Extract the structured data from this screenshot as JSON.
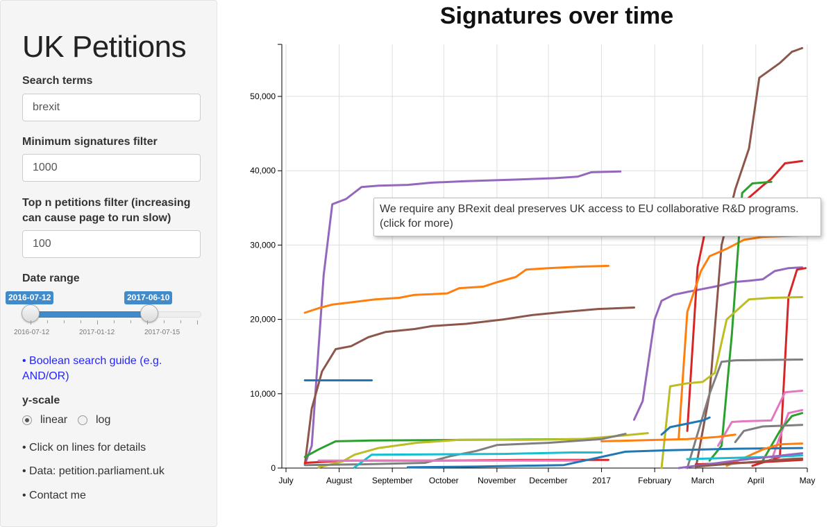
{
  "sidebar": {
    "title": "UK Petitions",
    "search_label": "Search terms",
    "search_value": "brexit",
    "min_sig_label": "Minimum signatures filter",
    "min_sig_value": "1000",
    "topn_label": "Top n petitions filter (increasing can cause page to run slow)",
    "topn_value": "100",
    "date_label": "Date range",
    "date_from": "2016-07-12",
    "date_to": "2017-06-10",
    "date_grid": [
      "2016-07-12",
      "2017-01-12",
      "2017-07-15"
    ],
    "guide_link": "• Boolean search guide (e.g. AND/OR)",
    "yscale_label": "y-scale",
    "yscale_options": [
      "linear",
      "log"
    ],
    "yscale_selected": "linear",
    "info1": "• Click on lines for details",
    "info2": "• Data: petition.parliament.uk",
    "info3": "• Contact me"
  },
  "tooltip": "We require any BRexit deal preserves UK access to EU collaborative R&D programs. (click for more)",
  "chart_data": {
    "type": "line",
    "title": "Signatures over time",
    "xlabel": "",
    "ylabel": "",
    "xlim": [
      "2016-07-01",
      "2017-05-01"
    ],
    "ylim": [
      0,
      57000
    ],
    "grid": true,
    "x_ticks": [
      {
        "date": "2016-07-01",
        "label": "July"
      },
      {
        "date": "2016-08-01",
        "label": "August"
      },
      {
        "date": "2016-09-01",
        "label": "September"
      },
      {
        "date": "2016-10-01",
        "label": "October"
      },
      {
        "date": "2016-11-01",
        "label": "November"
      },
      {
        "date": "2016-12-01",
        "label": "December"
      },
      {
        "date": "2017-01-01",
        "label": "2017"
      },
      {
        "date": "2017-02-01",
        "label": "February"
      },
      {
        "date": "2017-03-01",
        "label": "March"
      },
      {
        "date": "2017-04-01",
        "label": "April"
      },
      {
        "date": "2017-05-01",
        "label": "May"
      }
    ],
    "y_ticks": [
      0,
      10000,
      20000,
      30000,
      40000,
      50000
    ],
    "series": [
      {
        "color": "#9467bd",
        "points": [
          [
            "2016-07-12",
            500
          ],
          [
            "2016-07-16",
            3000
          ],
          [
            "2016-07-23",
            26000
          ],
          [
            "2016-07-28",
            35500
          ],
          [
            "2016-08-05",
            36200
          ],
          [
            "2016-08-14",
            37800
          ],
          [
            "2016-08-24",
            38000
          ],
          [
            "2016-09-10",
            38100
          ],
          [
            "2016-09-24",
            38400
          ],
          [
            "2016-10-14",
            38600
          ],
          [
            "2016-11-10",
            38800
          ],
          [
            "2016-12-05",
            39000
          ],
          [
            "2016-12-18",
            39200
          ],
          [
            "2016-12-26",
            39800
          ],
          [
            "2017-01-12",
            39900
          ]
        ]
      },
      {
        "color": "#ff7f0e",
        "points": [
          [
            "2016-07-12",
            20900
          ],
          [
            "2016-07-20",
            21500
          ],
          [
            "2016-07-28",
            22000
          ],
          [
            "2016-08-08",
            22300
          ],
          [
            "2016-08-22",
            22700
          ],
          [
            "2016-09-05",
            22900
          ],
          [
            "2016-09-14",
            23300
          ],
          [
            "2016-09-24",
            23400
          ],
          [
            "2016-10-03",
            23500
          ],
          [
            "2016-10-10",
            24200
          ],
          [
            "2016-10-24",
            24400
          ],
          [
            "2016-11-01",
            25000
          ],
          [
            "2016-11-12",
            25700
          ],
          [
            "2016-11-18",
            26700
          ],
          [
            "2016-12-01",
            26900
          ],
          [
            "2016-12-20",
            27100
          ],
          [
            "2017-01-05",
            27200
          ]
        ]
      },
      {
        "color": "#8c564b",
        "points": [
          [
            "2016-07-12",
            500
          ],
          [
            "2016-07-16",
            8000
          ],
          [
            "2016-07-22",
            13000
          ],
          [
            "2016-07-30",
            16000
          ],
          [
            "2016-08-08",
            16400
          ],
          [
            "2016-08-18",
            17600
          ],
          [
            "2016-08-28",
            18300
          ],
          [
            "2016-09-14",
            18700
          ],
          [
            "2016-09-24",
            19100
          ],
          [
            "2016-10-14",
            19400
          ],
          [
            "2016-11-05",
            20000
          ],
          [
            "2016-11-22",
            20600
          ],
          [
            "2016-12-10",
            21000
          ],
          [
            "2016-12-30",
            21400
          ],
          [
            "2017-01-20",
            21600
          ]
        ]
      },
      {
        "color": "#1f77b4",
        "points": [
          [
            "2016-07-12",
            11800
          ],
          [
            "2016-08-20",
            11800
          ]
        ]
      },
      {
        "color": "#2ca02c",
        "points": [
          [
            "2016-07-12",
            1500
          ],
          [
            "2016-07-20",
            2500
          ],
          [
            "2016-07-30",
            3600
          ],
          [
            "2016-08-20",
            3700
          ],
          [
            "2016-10-15",
            3800
          ],
          [
            "2016-12-20",
            3900
          ]
        ]
      },
      {
        "color": "#d62728",
        "points": [
          [
            "2016-07-12",
            700
          ],
          [
            "2016-08-05",
            1000
          ],
          [
            "2016-10-01",
            1000
          ],
          [
            "2016-11-15",
            1100
          ],
          [
            "2017-01-05",
            1100
          ]
        ]
      },
      {
        "color": "#bcbd22",
        "points": [
          [
            "2016-07-20",
            100
          ],
          [
            "2016-08-03",
            900
          ],
          [
            "2016-08-10",
            1800
          ],
          [
            "2016-08-24",
            2700
          ],
          [
            "2016-09-15",
            3400
          ],
          [
            "2016-10-10",
            3800
          ],
          [
            "2016-11-20",
            3800
          ],
          [
            "2016-12-20",
            3900
          ],
          [
            "2017-01-10",
            4300
          ],
          [
            "2017-01-28",
            4700
          ]
        ]
      },
      {
        "color": "#7f7f7f",
        "points": [
          [
            "2016-07-12",
            400
          ],
          [
            "2016-08-15",
            500
          ],
          [
            "2016-09-20",
            700
          ],
          [
            "2016-10-05",
            1600
          ],
          [
            "2016-10-20",
            2300
          ],
          [
            "2016-11-01",
            3100
          ],
          [
            "2016-12-01",
            3400
          ],
          [
            "2017-01-01",
            3900
          ],
          [
            "2017-01-15",
            4600
          ]
        ]
      },
      {
        "color": "#17becf",
        "points": [
          [
            "2016-08-10",
            100
          ],
          [
            "2016-08-20",
            1800
          ],
          [
            "2016-11-05",
            1900
          ],
          [
            "2016-12-15",
            2100
          ],
          [
            "2017-01-01",
            2100
          ]
        ]
      },
      {
        "color": "#e377c2",
        "points": [
          [
            "2016-07-20",
            1000
          ],
          [
            "2016-10-01",
            1000
          ],
          [
            "2016-12-20",
            1000
          ]
        ]
      },
      {
        "color": "#9467bd",
        "points": [
          [
            "2017-01-20",
            6500
          ],
          [
            "2017-01-25",
            9000
          ],
          [
            "2017-02-01",
            20000
          ],
          [
            "2017-02-05",
            22500
          ],
          [
            "2017-02-12",
            23300
          ],
          [
            "2017-02-20",
            23700
          ],
          [
            "2017-03-01",
            24100
          ],
          [
            "2017-03-10",
            24500
          ],
          [
            "2017-03-18",
            25000
          ],
          [
            "2017-03-28",
            25200
          ],
          [
            "2017-04-05",
            25400
          ],
          [
            "2017-04-12",
            26500
          ],
          [
            "2017-04-20",
            26900
          ],
          [
            "2017-04-28",
            27000
          ]
        ]
      },
      {
        "color": "#8c564b",
        "points": [
          [
            "2017-02-25",
            0
          ],
          [
            "2017-03-05",
            10000
          ],
          [
            "2017-03-12",
            30000
          ],
          [
            "2017-03-20",
            37500
          ],
          [
            "2017-03-28",
            43000
          ],
          [
            "2017-04-03",
            52500
          ],
          [
            "2017-04-15",
            54500
          ],
          [
            "2017-04-22",
            56000
          ],
          [
            "2017-04-28",
            56500
          ]
        ]
      },
      {
        "color": "#d62728",
        "points": [
          [
            "2017-02-20",
            5000
          ],
          [
            "2017-02-26",
            27000
          ],
          [
            "2017-03-03",
            32500
          ],
          [
            "2017-03-10",
            33500
          ],
          [
            "2017-03-20",
            34000
          ],
          [
            "2017-03-26",
            36000
          ],
          [
            "2017-04-05",
            38000
          ],
          [
            "2017-04-10",
            38900
          ],
          [
            "2017-04-18",
            41000
          ],
          [
            "2017-04-28",
            41300
          ]
        ]
      },
      {
        "color": "#ff7f0e",
        "points": [
          [
            "2017-02-15",
            4000
          ],
          [
            "2017-02-20",
            21000
          ],
          [
            "2017-02-28",
            26500
          ],
          [
            "2017-03-05",
            28500
          ],
          [
            "2017-03-15",
            29500
          ],
          [
            "2017-03-25",
            30700
          ],
          [
            "2017-04-05",
            31100
          ],
          [
            "2017-04-28",
            31300
          ]
        ]
      },
      {
        "color": "#2ca02c",
        "points": [
          [
            "2017-03-05",
            1000
          ],
          [
            "2017-03-12",
            3000
          ],
          [
            "2017-03-18",
            18000
          ],
          [
            "2017-03-24",
            37000
          ],
          [
            "2017-03-30",
            38300
          ],
          [
            "2017-04-10",
            38500
          ]
        ]
      },
      {
        "color": "#d62728",
        "points": [
          [
            "2017-03-30",
            300
          ],
          [
            "2017-04-15",
            1500
          ],
          [
            "2017-04-20",
            23000
          ],
          [
            "2017-04-25",
            26700
          ],
          [
            "2017-04-30",
            26900
          ]
        ]
      },
      {
        "color": "#bcbd22",
        "points": [
          [
            "2017-02-05",
            0
          ],
          [
            "2017-02-10",
            11000
          ],
          [
            "2017-02-20",
            11400
          ],
          [
            "2017-03-01",
            11600
          ],
          [
            "2017-03-08",
            12800
          ],
          [
            "2017-03-15",
            20000
          ],
          [
            "2017-03-28",
            22700
          ],
          [
            "2017-04-10",
            22900
          ],
          [
            "2017-04-28",
            23000
          ]
        ]
      },
      {
        "color": "#7f7f7f",
        "points": [
          [
            "2017-02-20",
            0
          ],
          [
            "2017-03-05",
            10000
          ],
          [
            "2017-03-12",
            14300
          ],
          [
            "2017-03-20",
            14500
          ],
          [
            "2017-04-28",
            14600
          ]
        ]
      },
      {
        "color": "#e377c2",
        "points": [
          [
            "2017-03-10",
            3000
          ],
          [
            "2017-03-18",
            6200
          ],
          [
            "2017-03-25",
            6300
          ],
          [
            "2017-04-10",
            6400
          ],
          [
            "2017-04-18",
            10200
          ],
          [
            "2017-04-28",
            10400
          ]
        ]
      },
      {
        "color": "#e377c2",
        "points": [
          [
            "2017-04-10",
            1000
          ],
          [
            "2017-04-20",
            7400
          ],
          [
            "2017-04-28",
            7800
          ]
        ]
      },
      {
        "color": "#2ca02c",
        "points": [
          [
            "2017-04-05",
            1000
          ],
          [
            "2017-04-15",
            5000
          ],
          [
            "2017-04-22",
            7000
          ],
          [
            "2017-04-28",
            7400
          ]
        ]
      },
      {
        "color": "#7f7f7f",
        "points": [
          [
            "2017-03-20",
            3500
          ],
          [
            "2017-03-25",
            5000
          ],
          [
            "2017-04-05",
            5600
          ],
          [
            "2017-04-28",
            5800
          ]
        ]
      },
      {
        "color": "#1f77b4",
        "points": [
          [
            "2017-02-05",
            4500
          ],
          [
            "2017-02-10",
            5500
          ],
          [
            "2017-03-01",
            6400
          ],
          [
            "2017-03-05",
            6800
          ]
        ]
      },
      {
        "color": "#ff7f0e",
        "points": [
          [
            "2017-01-01",
            3600
          ],
          [
            "2017-02-20",
            3900
          ],
          [
            "2017-03-10",
            4200
          ],
          [
            "2017-03-20",
            4500
          ]
        ]
      },
      {
        "color": "#1f77b4",
        "points": [
          [
            "2016-09-10",
            100
          ],
          [
            "2016-10-20",
            200
          ],
          [
            "2016-12-10",
            400
          ],
          [
            "2017-01-15",
            2200
          ],
          [
            "2017-02-10",
            2400
          ],
          [
            "2017-03-20",
            2600
          ],
          [
            "2017-04-28",
            2700
          ]
        ]
      },
      {
        "color": "#ff7f0e",
        "points": [
          [
            "2017-03-15",
            300
          ],
          [
            "2017-04-05",
            2500
          ],
          [
            "2017-04-15",
            3200
          ],
          [
            "2017-04-28",
            3300
          ]
        ]
      },
      {
        "color": "#17becf",
        "points": [
          [
            "2017-02-20",
            1200
          ],
          [
            "2017-04-10",
            1500
          ],
          [
            "2017-04-28",
            1700
          ]
        ]
      },
      {
        "color": "#d62728",
        "points": [
          [
            "2017-02-25",
            500
          ],
          [
            "2017-04-05",
            800
          ],
          [
            "2017-04-28",
            1100
          ]
        ]
      },
      {
        "color": "#9467bd",
        "points": [
          [
            "2017-02-15",
            0
          ],
          [
            "2017-03-20",
            1000
          ],
          [
            "2017-04-28",
            2000
          ]
        ]
      },
      {
        "color": "#8c564b",
        "points": [
          [
            "2017-02-25",
            200
          ],
          [
            "2017-04-20",
            1200
          ],
          [
            "2017-04-28",
            1300
          ]
        ]
      }
    ]
  }
}
